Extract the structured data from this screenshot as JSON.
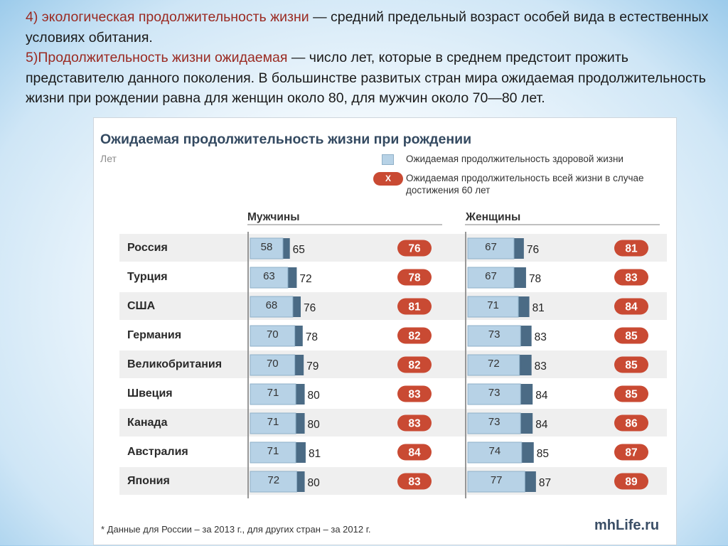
{
  "intro": {
    "p4_lead": "4) экологическая продолжительность жизни",
    "p4_rest": " — средний предельный возраст особей вида в естественных условиях обитания.",
    "p5_lead": "5)Продолжительность жизни ожидаемая",
    "p5_rest": " — число лет, которые в среднем предстоит прожить представителю данного поколения. В большинстве развитых стран мира ожидаемая продолжительность жизни при рождении равна для женщин  около 80, для мужчин около 70—80  лет."
  },
  "colors": {
    "healthy": "#b7d2e6",
    "healthy_border": "#8fb0c8",
    "total": "#4b6b85",
    "badge": "#c94a33",
    "row_shade": "#efefef"
  },
  "chart_data": {
    "type": "bar",
    "title": "Ожидаемая продолжительность жизни при рождении",
    "unit": "Лет",
    "legend": {
      "healthy": "Ожидаемая продолжительность здоровой жизни",
      "at60": "Ожидаемая продолжительность всей жизни в случае достижения 60 лет",
      "at60_marker": "X",
      "placement": "top-right"
    },
    "group_labels": [
      "Мужчины",
      "Женщины"
    ],
    "categories": [
      "Россия",
      "Турция",
      "США",
      "Германия",
      "Великобритания",
      "Швеция",
      "Канада",
      "Австралия",
      "Япония"
    ],
    "series": [
      {
        "name": "Мужчины",
        "healthy": [
          58,
          63,
          68,
          70,
          70,
          71,
          71,
          71,
          72
        ],
        "total": [
          65,
          72,
          76,
          78,
          79,
          80,
          80,
          81,
          80
        ],
        "at60": [
          76,
          78,
          81,
          82,
          82,
          83,
          83,
          84,
          83
        ]
      },
      {
        "name": "Женщины",
        "healthy": [
          67,
          67,
          71,
          73,
          72,
          73,
          73,
          74,
          77
        ],
        "total": [
          76,
          78,
          81,
          83,
          83,
          84,
          84,
          85,
          87
        ],
        "at60": [
          81,
          83,
          84,
          85,
          85,
          85,
          86,
          87,
          89
        ]
      }
    ],
    "footnote": "* Данные для России – за 2013 г., для других стран – за 2012 г.",
    "source": "mhLife.ru"
  }
}
